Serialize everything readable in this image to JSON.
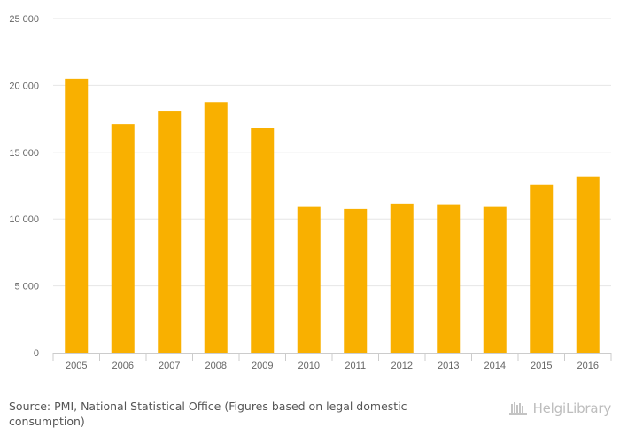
{
  "chart_data": {
    "type": "bar",
    "categories": [
      "2005",
      "2006",
      "2007",
      "2008",
      "2009",
      "2010",
      "2011",
      "2012",
      "2013",
      "2014",
      "2015",
      "2016"
    ],
    "values": [
      20500,
      17100,
      18100,
      18750,
      16800,
      10900,
      10750,
      11150,
      11100,
      10900,
      12550,
      13150
    ],
    "ylim": [
      0,
      25000
    ],
    "yticks": [
      0,
      5000,
      10000,
      15000,
      20000,
      25000
    ],
    "ytick_labels": [
      "0",
      "5 000",
      "10 000",
      "15 000",
      "20 000",
      "25 000"
    ],
    "grid": true,
    "legend": "none",
    "bar_color": "#f9b000",
    "title": "",
    "xlabel": "",
    "ylabel": ""
  },
  "footer": {
    "source": "Source: PMI, National Statistical Office (Figures based on legal domestic consumption)"
  },
  "brand": {
    "name": "HelgiLibrary",
    "icon": "library-logo-icon"
  }
}
